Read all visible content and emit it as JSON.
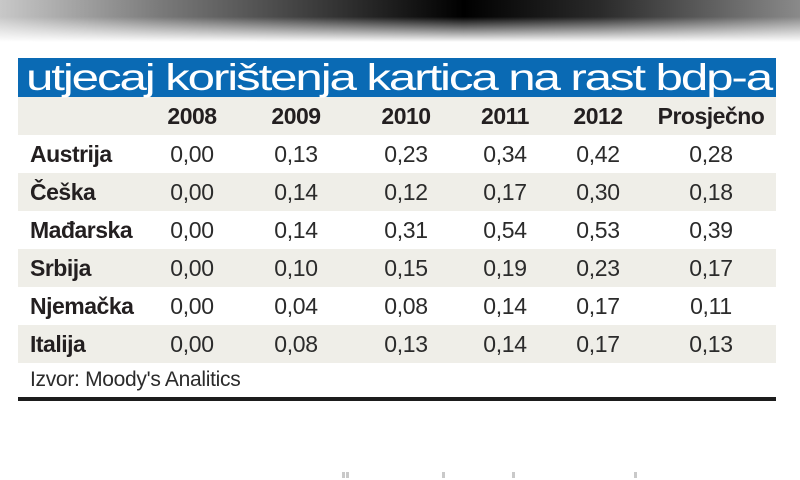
{
  "title": "utjecaj korištenja kartica na rast bdp-a",
  "colors": {
    "title_bg": "#0a6ab4",
    "title_text": "#ffffff",
    "row_alt": "#efeee8",
    "row_base": "#ffffff",
    "rule": "#1d1d1d"
  },
  "table": {
    "headers": [
      "",
      "2008",
      "2009",
      "2010",
      "2011",
      "2012",
      "Prosječno"
    ],
    "rows": [
      {
        "country": "Austrija",
        "values": [
          "0,00",
          "0,13",
          "0,23",
          "0,34",
          "0,42",
          "0,28"
        ]
      },
      {
        "country": "Češka",
        "values": [
          "0,00",
          "0,14",
          "0,12",
          "0,17",
          "0,30",
          "0,18"
        ]
      },
      {
        "country": "Mađarska",
        "values": [
          "0,00",
          "0,14",
          "0,31",
          "0,54",
          "0,53",
          "0,39"
        ]
      },
      {
        "country": "Srbija",
        "values": [
          "0,00",
          "0,10",
          "0,15",
          "0,19",
          "0,23",
          "0,17"
        ]
      },
      {
        "country": "Njemačka",
        "values": [
          "0,00",
          "0,04",
          "0,08",
          "0,14",
          "0,17",
          "0,11"
        ]
      },
      {
        "country": "Italija",
        "values": [
          "0,00",
          "0,08",
          "0,13",
          "0,14",
          "0,17",
          "0,13"
        ]
      }
    ]
  },
  "source": "Izvor: Moody's Analitics",
  "chart_data": {
    "type": "table",
    "title": "utjecaj korištenja kartica na rast bdp-a",
    "categories": [
      "2008",
      "2009",
      "2010",
      "2011",
      "2012",
      "Prosječno"
    ],
    "series": [
      {
        "name": "Austrija",
        "values": [
          0.0,
          0.13,
          0.23,
          0.34,
          0.42,
          0.28
        ]
      },
      {
        "name": "Češka",
        "values": [
          0.0,
          0.14,
          0.12,
          0.17,
          0.3,
          0.18
        ]
      },
      {
        "name": "Mađarska",
        "values": [
          0.0,
          0.14,
          0.31,
          0.54,
          0.53,
          0.39
        ]
      },
      {
        "name": "Srbija",
        "values": [
          0.0,
          0.1,
          0.15,
          0.19,
          0.23,
          0.17
        ]
      },
      {
        "name": "Njemačka",
        "values": [
          0.0,
          0.04,
          0.08,
          0.14,
          0.17,
          0.11
        ]
      },
      {
        "name": "Italija",
        "values": [
          0.0,
          0.08,
          0.13,
          0.14,
          0.17,
          0.13
        ]
      }
    ],
    "source": "Izvor: Moody's Analitics",
    "decimal_separator": ","
  }
}
